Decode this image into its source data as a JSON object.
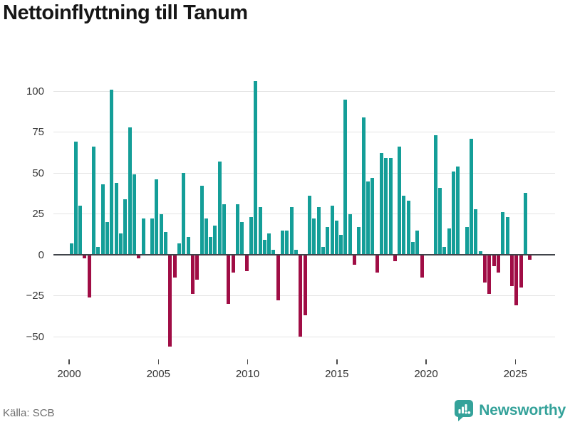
{
  "title": "Nettoinflyttning till Tanum",
  "footer": {
    "source": "Källa: SCB",
    "brand": "Newsworthy"
  },
  "chart_data": {
    "type": "bar",
    "title": "Nettoinflyttning till Tanum",
    "frequency": "quarterly",
    "start_period": "2000 Q1",
    "end_period": "2025 Q3",
    "values": [
      7,
      69,
      30,
      -2,
      -26,
      66,
      5,
      43,
      20,
      101,
      44,
      13,
      34,
      78,
      49,
      -2,
      22,
      0,
      22,
      46,
      25,
      14,
      -56,
      -14,
      7,
      50,
      11,
      -24,
      -15,
      42,
      22,
      11,
      18,
      57,
      31,
      -30,
      -11,
      31,
      20,
      -10,
      23,
      106,
      29,
      9,
      13,
      3,
      -28,
      15,
      15,
      29,
      3,
      -50,
      -37,
      36,
      22,
      29,
      5,
      17,
      30,
      21,
      12,
      95,
      25,
      -6,
      17,
      84,
      45,
      47,
      -11,
      62,
      59,
      59,
      -4,
      66,
      36,
      33,
      8,
      15,
      -14,
      0,
      0,
      73,
      41,
      5,
      16,
      51,
      54,
      0,
      17,
      71,
      28,
      2,
      -17,
      -24,
      -7,
      -11,
      26,
      23,
      -19,
      -31,
      -20,
      38,
      -3
    ],
    "xticks": [
      2000,
      2005,
      2010,
      2015,
      2020,
      2025
    ],
    "yticks": [
      100,
      75,
      50,
      25,
      0,
      -25,
      -50
    ],
    "ylim": [
      -60,
      110
    ],
    "grid": true,
    "legend": false,
    "positive_color": "#149e98",
    "negative_color": "#a00d45",
    "zero_line_color": "#40444a"
  }
}
